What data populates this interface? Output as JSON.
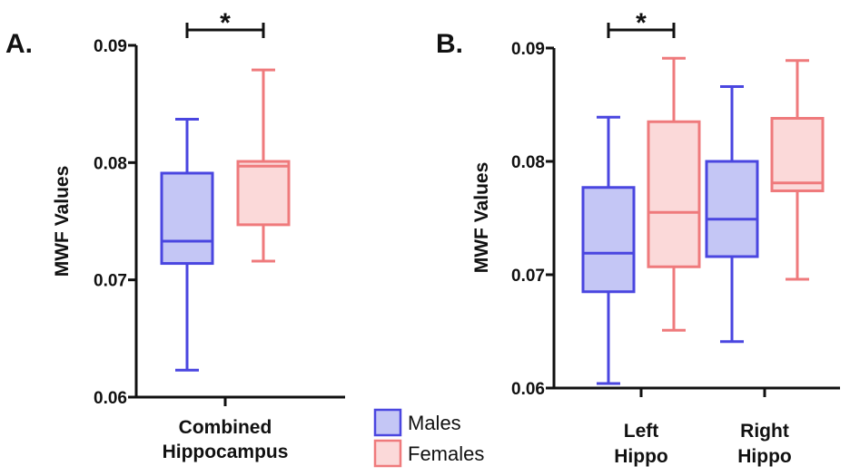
{
  "colors": {
    "male_stroke": "#4a46e0",
    "male_fill": "#c4c6f5",
    "female_stroke": "#ef7a7c",
    "female_fill": "#fbd9d9",
    "axis": "#111111"
  },
  "legend": {
    "items": [
      {
        "name": "Males",
        "color_key": "male"
      },
      {
        "name": "Females",
        "color_key": "female"
      }
    ]
  },
  "chart_data": [
    {
      "panel_label": "A.",
      "type": "box",
      "ylabel": "MWF Values",
      "ylim": [
        0.06,
        0.09
      ],
      "yticks": [
        0.06,
        0.07,
        0.08,
        0.09
      ],
      "ytick_labels": [
        "0.06",
        "0.07",
        "0.08",
        "0.09"
      ],
      "categories": [
        {
          "label_lines": [
            "Combined",
            "Hippocampus"
          ]
        }
      ],
      "series": [
        {
          "name": "Males",
          "color_key": "male",
          "boxes": [
            {
              "min": 0.0623,
              "q1": 0.0714,
              "median": 0.0733,
              "q3": 0.0791,
              "max": 0.0837
            }
          ]
        },
        {
          "name": "Females",
          "color_key": "female",
          "boxes": [
            {
              "min": 0.0716,
              "q1": 0.0747,
              "median": 0.0797,
              "q3": 0.0801,
              "max": 0.0879
            }
          ]
        }
      ],
      "significance": [
        {
          "category_index": 0,
          "label": "*"
        }
      ]
    },
    {
      "panel_label": "B.",
      "type": "box",
      "ylabel": "MWF Values",
      "ylim": [
        0.06,
        0.09
      ],
      "yticks": [
        0.06,
        0.07,
        0.08,
        0.09
      ],
      "ytick_labels": [
        "0.06",
        "0.07",
        "0.08",
        "0.09"
      ],
      "categories": [
        {
          "label_lines": [
            "Left",
            "Hippo"
          ]
        },
        {
          "label_lines": [
            "Right",
            "Hippo"
          ]
        }
      ],
      "series": [
        {
          "name": "Males",
          "color_key": "male",
          "boxes": [
            {
              "min": 0.0604,
              "q1": 0.0685,
              "median": 0.0719,
              "q3": 0.0777,
              "max": 0.0839
            },
            {
              "min": 0.0641,
              "q1": 0.0716,
              "median": 0.0749,
              "q3": 0.08,
              "max": 0.0866
            }
          ]
        },
        {
          "name": "Females",
          "color_key": "female",
          "boxes": [
            {
              "min": 0.0651,
              "q1": 0.0707,
              "median": 0.0755,
              "q3": 0.0835,
              "max": 0.0891
            },
            {
              "min": 0.0696,
              "q1": 0.0774,
              "median": 0.0781,
              "q3": 0.0838,
              "max": 0.0889
            }
          ]
        }
      ],
      "significance": [
        {
          "category_index": 0,
          "label": "*"
        }
      ]
    }
  ]
}
